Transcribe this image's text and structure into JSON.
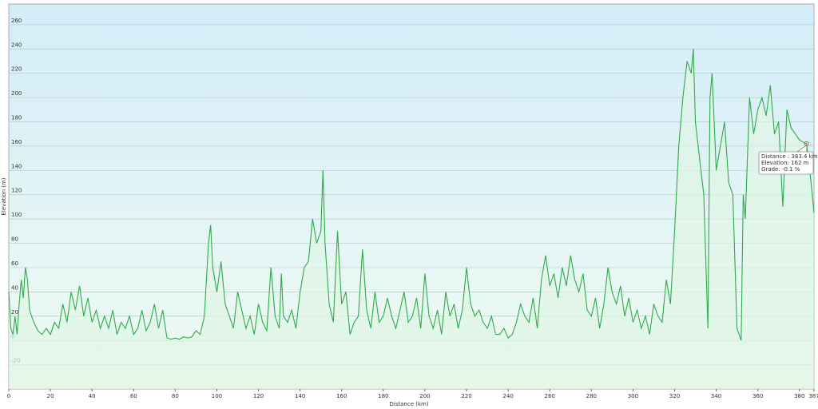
{
  "chart_data": {
    "type": "area",
    "xlabel": "Distance  (km)",
    "ylabel": "Elevation (m)",
    "x": [
      0,
      1,
      2,
      3,
      4,
      5,
      6,
      7,
      8,
      9,
      10,
      12,
      14,
      16,
      18,
      20,
      22,
      24,
      26,
      28,
      30,
      32,
      34,
      36,
      38,
      40,
      42,
      44,
      46,
      48,
      50,
      52,
      54,
      56,
      58,
      60,
      62,
      64,
      66,
      68,
      70,
      72,
      74,
      76,
      78,
      80,
      82,
      84,
      86,
      88,
      90,
      92,
      94,
      96,
      97,
      98,
      100,
      102,
      104,
      106,
      108,
      110,
      112,
      114,
      116,
      118,
      120,
      122,
      124,
      126,
      128,
      130,
      131,
      132,
      134,
      136,
      138,
      140,
      142,
      144,
      146,
      148,
      150,
      151,
      152,
      154,
      156,
      158,
      160,
      162,
      164,
      166,
      168,
      170,
      172,
      174,
      176,
      178,
      180,
      182,
      184,
      186,
      188,
      190,
      192,
      194,
      196,
      198,
      200,
      202,
      204,
      206,
      208,
      210,
      212,
      214,
      216,
      218,
      220,
      222,
      224,
      226,
      228,
      230,
      232,
      234,
      236,
      238,
      240,
      242,
      244,
      246,
      248,
      250,
      252,
      254,
      256,
      258,
      260,
      262,
      264,
      266,
      268,
      270,
      272,
      274,
      276,
      278,
      280,
      282,
      284,
      286,
      288,
      290,
      292,
      294,
      296,
      298,
      300,
      302,
      304,
      306,
      308,
      310,
      312,
      314,
      316,
      318,
      320,
      322,
      324,
      326,
      328,
      329,
      330,
      332,
      334,
      336,
      337,
      338,
      340,
      342,
      344,
      346,
      348,
      350,
      352,
      353,
      354,
      356,
      358,
      360,
      362,
      364,
      366,
      368,
      370,
      372,
      374,
      376,
      378,
      380,
      382,
      383.4,
      385,
      387
    ],
    "series": [
      {
        "color": "#2eaa4a",
        "fill": "#dff5e6",
        "values": [
          40,
          10,
          5,
          20,
          5,
          30,
          50,
          35,
          60,
          50,
          25,
          15,
          8,
          5,
          10,
          5,
          15,
          10,
          30,
          15,
          40,
          25,
          45,
          20,
          35,
          15,
          25,
          10,
          20,
          10,
          25,
          5,
          15,
          10,
          20,
          5,
          10,
          25,
          8,
          15,
          30,
          10,
          25,
          2,
          1,
          2,
          1,
          3,
          2,
          3,
          8,
          5,
          20,
          80,
          95,
          60,
          40,
          65,
          30,
          20,
          10,
          40,
          25,
          10,
          20,
          5,
          30,
          15,
          8,
          60,
          20,
          10,
          55,
          20,
          15,
          25,
          10,
          40,
          60,
          65,
          100,
          80,
          90,
          140,
          80,
          30,
          15,
          90,
          30,
          40,
          5,
          15,
          20,
          75,
          25,
          10,
          40,
          15,
          20,
          35,
          20,
          10,
          25,
          40,
          15,
          20,
          35,
          10,
          55,
          20,
          10,
          25,
          5,
          40,
          20,
          30,
          10,
          25,
          60,
          30,
          20,
          25,
          15,
          10,
          20,
          5,
          5,
          10,
          2,
          5,
          15,
          30,
          20,
          15,
          35,
          10,
          50,
          70,
          45,
          55,
          35,
          60,
          45,
          70,
          50,
          40,
          55,
          25,
          20,
          35,
          10,
          30,
          60,
          40,
          30,
          45,
          20,
          35,
          15,
          25,
          10,
          20,
          5,
          30,
          20,
          15,
          50,
          30,
          90,
          160,
          200,
          230,
          220,
          240,
          180,
          150,
          120,
          10,
          200,
          220,
          140,
          160,
          180,
          130,
          120,
          10,
          0,
          120,
          100,
          200,
          170,
          190,
          200,
          185,
          210,
          170,
          180,
          110,
          190,
          175,
          170,
          165,
          163,
          162,
          140,
          105
        ]
      }
    ],
    "xlim": [
      0,
      387
    ],
    "ylim": [
      -40,
      277
    ],
    "xticks": [
      0,
      20,
      40,
      60,
      80,
      100,
      120,
      140,
      160,
      180,
      200,
      220,
      240,
      260,
      280,
      300,
      320,
      340,
      360,
      380,
      387
    ],
    "yticks": [
      -20,
      0,
      20,
      40,
      60,
      80,
      100,
      120,
      140,
      160,
      180,
      200,
      220,
      240,
      260
    ],
    "grid": true,
    "tooltip": {
      "x": 383.4,
      "y": 162,
      "lines": [
        "Distance : 383.4 km",
        "Elevation: 162 m",
        "Grade: -0.1 %"
      ]
    }
  }
}
